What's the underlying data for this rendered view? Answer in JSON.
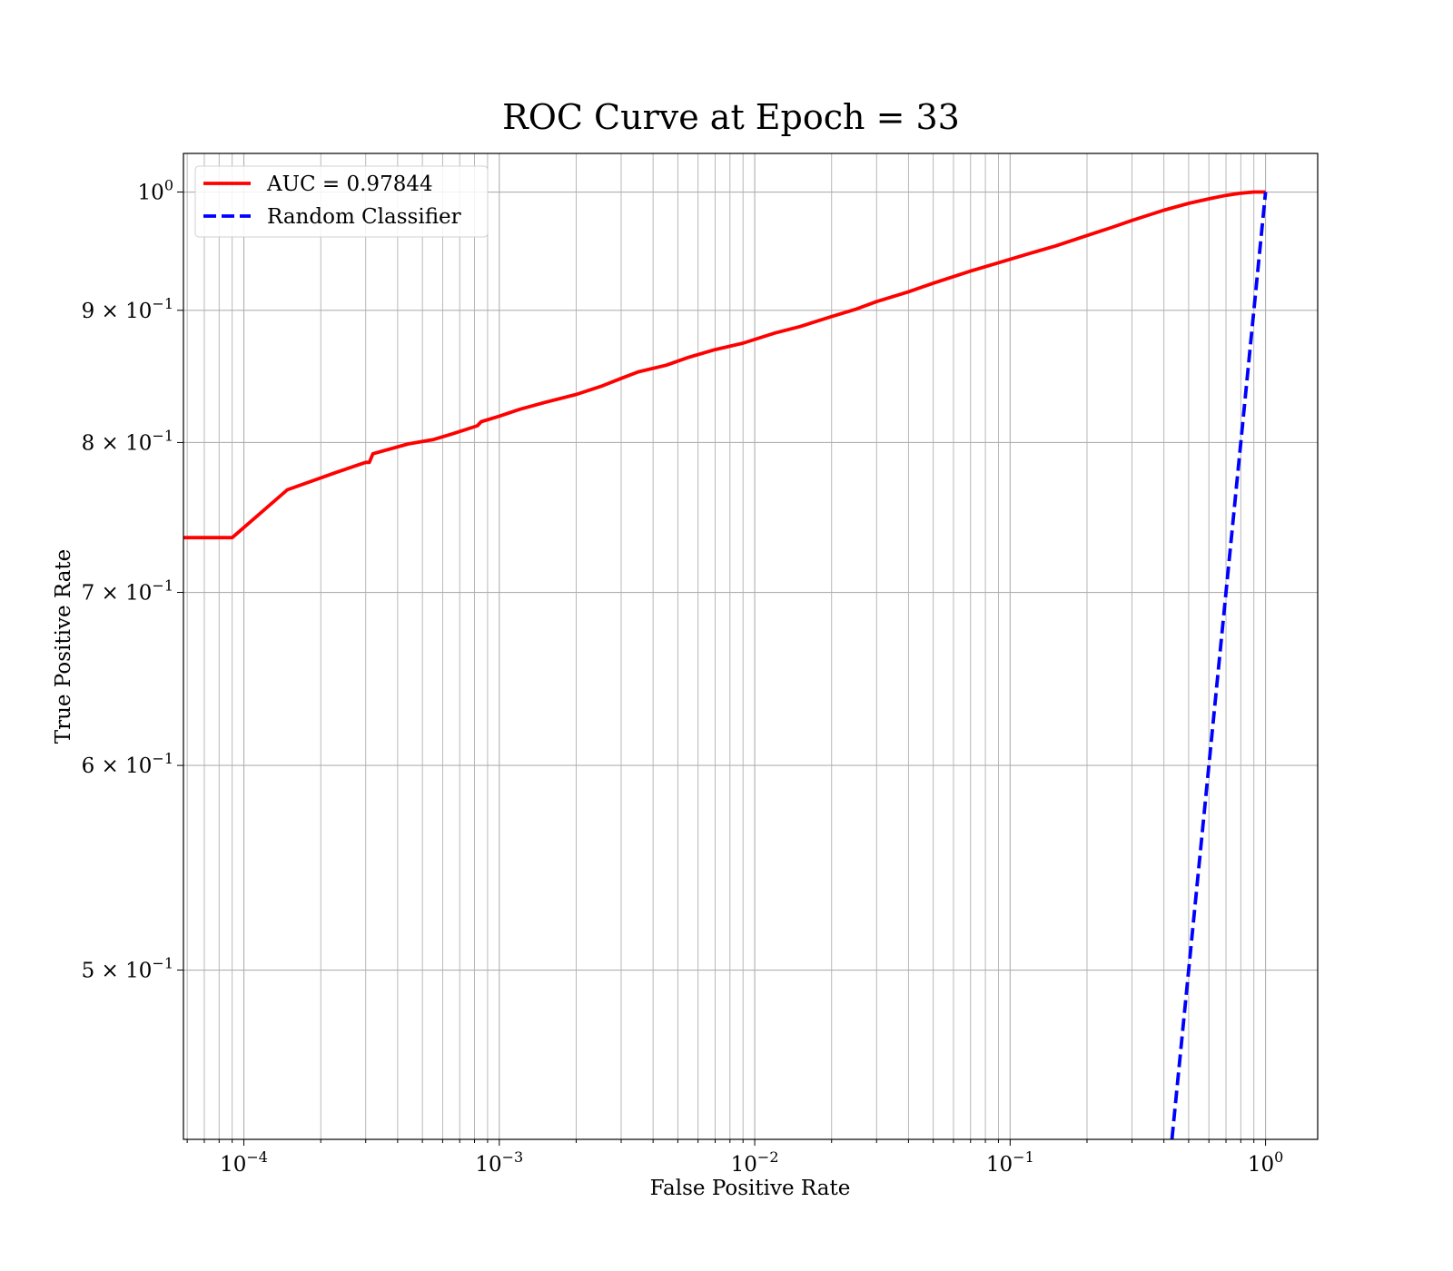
{
  "chart_data": {
    "type": "line",
    "title": "ROC Curve at Epoch = 33",
    "xlabel": "False Positive Rate",
    "ylabel": "True Positive Rate",
    "xscale": "log",
    "yscale": "log",
    "xlim": [
      5.8e-05,
      1.6
    ],
    "ylim": [
      0.43,
      1.035
    ],
    "grid": "both (major and minor)",
    "legend_position": "upper-left",
    "x_ticks": [
      {
        "value": 0.0001,
        "base": "10",
        "exp": "−4"
      },
      {
        "value": 0.001,
        "base": "10",
        "exp": "−3"
      },
      {
        "value": 0.01,
        "base": "10",
        "exp": "−2"
      },
      {
        "value": 0.1,
        "base": "10",
        "exp": "−1"
      },
      {
        "value": 1,
        "base": "10",
        "exp": "0"
      }
    ],
    "y_ticks": [
      {
        "value": 1.0,
        "base": "10",
        "exp": "0"
      },
      {
        "value": 0.9,
        "base": "9 × 10",
        "exp": "−1"
      },
      {
        "value": 0.8,
        "base": "8 × 10",
        "exp": "−1"
      },
      {
        "value": 0.7,
        "base": "7 × 10",
        "exp": "−1"
      },
      {
        "value": 0.6,
        "base": "6 × 10",
        "exp": "−1"
      },
      {
        "value": 0.5,
        "base": "5 × 10",
        "exp": "−1"
      }
    ],
    "series": [
      {
        "name": "AUC = 0.97844",
        "color": "#ff0000",
        "style": "solid",
        "x": [
          5.8e-05,
          9e-05,
          0.000148,
          0.00023,
          0.0003,
          0.00031,
          0.00032,
          0.00044,
          0.00055,
          0.00065,
          0.00079,
          0.00082,
          0.00085,
          0.001,
          0.0012,
          0.0015,
          0.002,
          0.0025,
          0.003,
          0.0035,
          0.0045,
          0.0055,
          0.007,
          0.009,
          0.012,
          0.015,
          0.02,
          0.025,
          0.03,
          0.04,
          0.05,
          0.07,
          0.09,
          0.12,
          0.15,
          0.2,
          0.25,
          0.3,
          0.4,
          0.5,
          0.6,
          0.7,
          0.8,
          0.9,
          1.0
        ],
        "y": [
          0.735,
          0.735,
          0.767,
          0.779,
          0.786,
          0.786,
          0.792,
          0.799,
          0.802,
          0.806,
          0.811,
          0.812,
          0.815,
          0.819,
          0.824,
          0.829,
          0.835,
          0.841,
          0.847,
          0.852,
          0.857,
          0.863,
          0.869,
          0.874,
          0.882,
          0.887,
          0.895,
          0.901,
          0.907,
          0.915,
          0.922,
          0.932,
          0.939,
          0.947,
          0.953,
          0.962,
          0.969,
          0.975,
          0.984,
          0.99,
          0.994,
          0.997,
          0.999,
          1.0,
          1.0
        ]
      },
      {
        "name": "Random Classifier",
        "color": "#0000ff",
        "style": "dashed",
        "x": [
          0.43,
          1.0
        ],
        "y": [
          0.43,
          1.0
        ]
      }
    ]
  }
}
